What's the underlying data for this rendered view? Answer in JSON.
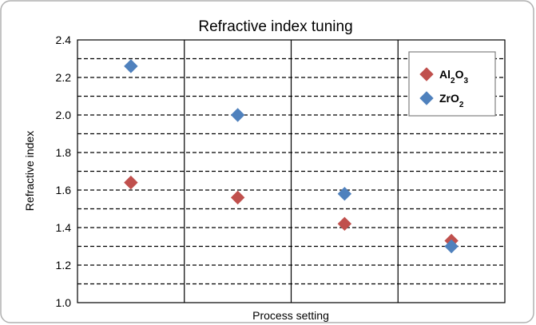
{
  "chart_data": {
    "type": "scatter",
    "title": "Refractive index tuning",
    "xlabel": "Process setting",
    "ylabel": "Refractive index",
    "ylim": [
      1.0,
      2.4
    ],
    "yticks": [
      "1.0",
      "1.2",
      "1.4",
      "1.6",
      "1.8",
      "2.0",
      "2.2",
      "2.4"
    ],
    "x_groups": 4,
    "grid": "horizontal dashed at 0.1 intervals; vertical solid group separators",
    "legend_position": "top-right",
    "series": [
      {
        "name_parts": [
          [
            "Al",
            ""
          ],
          [
            "2",
            "sub"
          ],
          [
            "O",
            ""
          ],
          [
            "3",
            "sub"
          ]
        ],
        "color": "#c0504d",
        "marker": "diamond",
        "points": [
          [
            1,
            1.64
          ],
          [
            2,
            1.56
          ],
          [
            3,
            1.42
          ],
          [
            4,
            1.33
          ]
        ]
      },
      {
        "name_parts": [
          [
            "ZrO",
            ""
          ],
          [
            "2",
            "sub"
          ]
        ],
        "color": "#4f81bd",
        "marker": "diamond",
        "points": [
          [
            1,
            2.26
          ],
          [
            2,
            2.0
          ],
          [
            3,
            1.58
          ],
          [
            4,
            1.3
          ]
        ]
      }
    ]
  },
  "colors": {
    "frame_border": "#b0b0b0",
    "frame_background": "#ffffff",
    "gridline": "#000000"
  }
}
